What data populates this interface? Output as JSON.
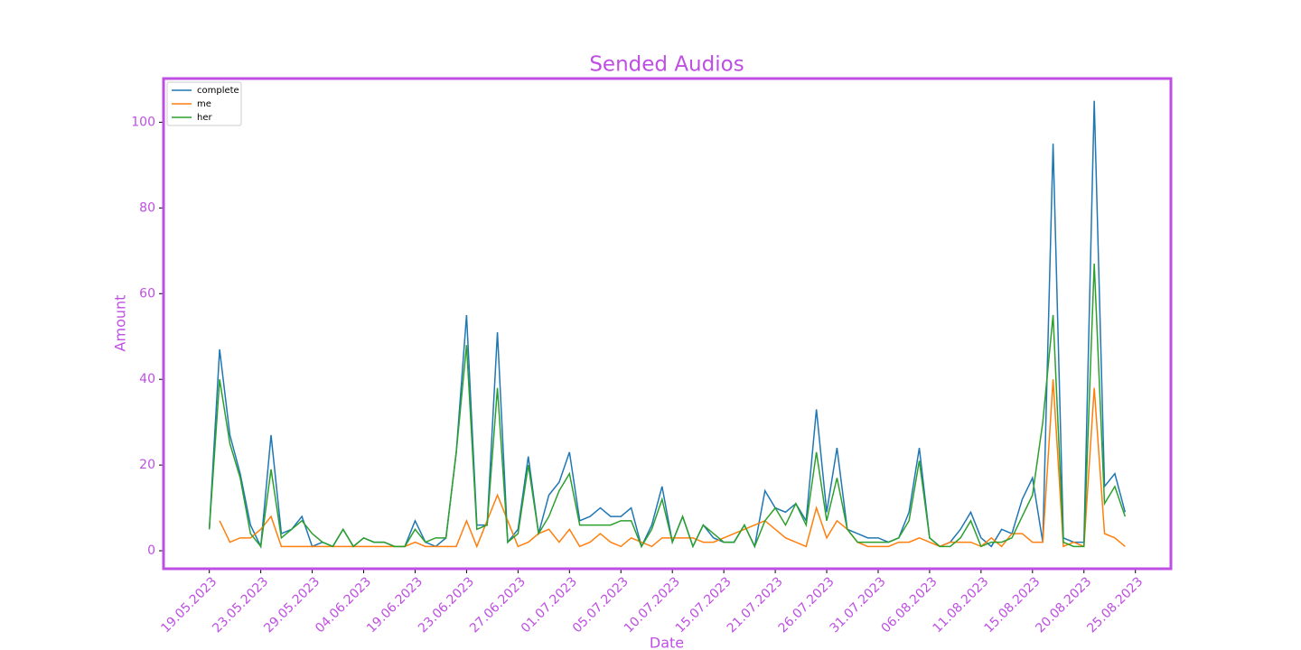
{
  "chart_data": {
    "type": "line",
    "title": "Sended Audios",
    "x_label": "Date",
    "y_label": "Amount",
    "x": [
      0,
      1,
      2,
      3,
      4,
      5,
      6,
      7,
      8,
      9,
      10,
      11,
      12,
      13,
      14,
      15,
      16,
      17,
      18,
      19,
      20,
      21,
      22,
      23,
      24,
      25,
      26,
      27,
      28,
      29,
      30,
      31,
      32,
      33,
      34,
      35,
      36,
      37,
      38,
      39,
      40,
      41,
      42,
      43,
      44,
      45,
      46,
      47,
      48,
      49,
      50,
      51,
      52,
      53,
      54,
      55,
      56,
      57,
      58,
      59,
      60,
      61,
      62,
      63,
      64,
      65,
      66,
      67,
      68,
      69,
      70,
      71,
      72,
      73,
      74,
      75,
      76,
      77,
      78,
      79,
      80,
      81,
      82,
      83,
      84,
      85,
      86,
      87,
      88,
      89
    ],
    "series": [
      {
        "name": "complete",
        "color": "#1f77b4",
        "values": [
          5,
          47,
          27,
          18,
          6,
          1,
          27,
          4,
          5,
          8,
          1,
          2,
          1,
          5,
          1,
          3,
          2,
          2,
          1,
          1,
          7,
          2,
          1,
          3,
          23,
          55,
          6,
          6,
          51,
          2,
          5,
          22,
          4,
          13,
          16,
          23,
          7,
          8,
          10,
          8,
          8,
          10,
          1,
          6,
          15,
          2,
          8,
          1,
          6,
          3,
          2,
          2,
          6,
          1,
          14,
          10,
          9,
          11,
          7,
          33,
          9,
          24,
          5,
          4,
          3,
          3,
          2,
          3,
          9,
          24,
          3,
          1,
          2,
          5,
          9,
          3,
          1,
          5,
          4,
          12,
          17,
          2,
          95,
          3,
          2,
          2,
          105,
          15,
          18,
          9
        ]
      },
      {
        "name": "me",
        "color": "#ff7f0e",
        "values": [
          null,
          7,
          2,
          3,
          3,
          5,
          8,
          1,
          1,
          1,
          1,
          1,
          1,
          1,
          1,
          1,
          1,
          1,
          1,
          1,
          2,
          1,
          1,
          1,
          1,
          7,
          1,
          7,
          13,
          7,
          1,
          2,
          4,
          5,
          2,
          5,
          1,
          2,
          4,
          2,
          1,
          3,
          2,
          1,
          3,
          3,
          3,
          3,
          2,
          2,
          3,
          4,
          5,
          6,
          7,
          5,
          3,
          2,
          1,
          10,
          3,
          7,
          5,
          2,
          1,
          1,
          1,
          2,
          2,
          3,
          2,
          1,
          2,
          2,
          2,
          1,
          3,
          1,
          4,
          4,
          2,
          2,
          40,
          1,
          2,
          1,
          38,
          4,
          3,
          1
        ]
      },
      {
        "name": "her",
        "color": "#2ca02c",
        "values": [
          5,
          40,
          25,
          17,
          4,
          1,
          19,
          3,
          5,
          7,
          4,
          2,
          1,
          5,
          1,
          3,
          2,
          2,
          1,
          1,
          5,
          2,
          3,
          3,
          23,
          48,
          5,
          6,
          38,
          2,
          4,
          20,
          4,
          8,
          14,
          18,
          6,
          6,
          6,
          6,
          7,
          7,
          1,
          5,
          12,
          2,
          8,
          1,
          6,
          4,
          2,
          2,
          6,
          1,
          7,
          10,
          6,
          11,
          6,
          23,
          7,
          17,
          5,
          2,
          2,
          2,
          2,
          3,
          7,
          21,
          3,
          1,
          1,
          3,
          7,
          1,
          2,
          2,
          3,
          8,
          13,
          30,
          55,
          2,
          1,
          1,
          67,
          11,
          15,
          8
        ]
      }
    ],
    "xlim": [
      -4.45,
      93.45
    ],
    "xticks": [
      {
        "value": 0,
        "label": "19.05.2023"
      },
      {
        "value": 5,
        "label": "23.05.2023"
      },
      {
        "value": 10,
        "label": "29.05.2023"
      },
      {
        "value": 15,
        "label": "04.06.2023"
      },
      {
        "value": 20,
        "label": "19.06.2023"
      },
      {
        "value": 25,
        "label": "23.06.2023"
      },
      {
        "value": 30,
        "label": "27.06.2023"
      },
      {
        "value": 35,
        "label": "01.07.2023"
      },
      {
        "value": 40,
        "label": "05.07.2023"
      },
      {
        "value": 45,
        "label": "10.07.2023"
      },
      {
        "value": 50,
        "label": "15.07.2023"
      },
      {
        "value": 55,
        "label": "21.07.2023"
      },
      {
        "value": 60,
        "label": "26.07.2023"
      },
      {
        "value": 65,
        "label": "31.07.2023"
      },
      {
        "value": 70,
        "label": "06.08.2023"
      },
      {
        "value": 75,
        "label": "11.08.2023"
      },
      {
        "value": 80,
        "label": "15.08.2023"
      },
      {
        "value": 85,
        "label": "20.08.2023"
      },
      {
        "value": 90,
        "label": "25.08.2023"
      }
    ],
    "ylim": [
      -4.2,
      110.2
    ],
    "yticks": [
      0,
      20,
      40,
      60,
      80,
      100
    ],
    "legend": "upper left",
    "accent_color": "#bf4fe3"
  }
}
